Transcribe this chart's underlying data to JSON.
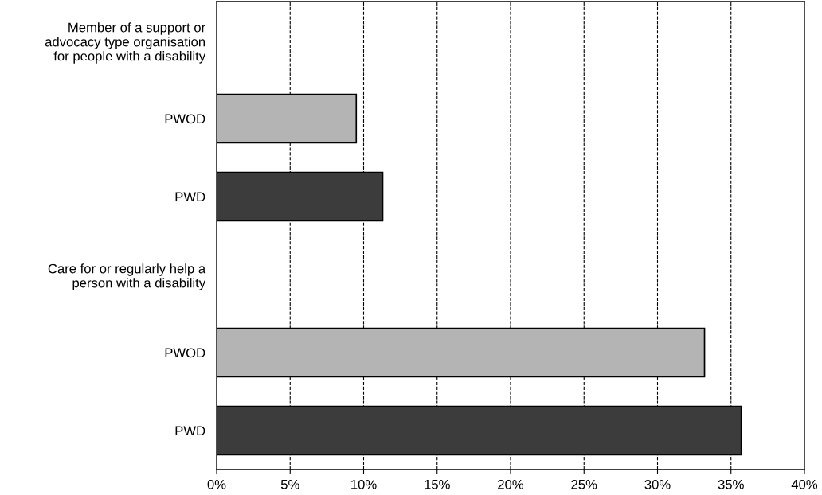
{
  "chart_data": {
    "type": "bar",
    "orientation": "horizontal",
    "categories": [
      "Member of a support or\nadvocacy type organisation\nfor people with a disability",
      "PWOD",
      "PWD",
      "Care for or regularly help a\nperson with a disability",
      "PWOD",
      "PWD"
    ],
    "values": [
      null,
      9.5,
      11.3,
      null,
      33.2,
      35.7
    ],
    "colors": [
      "#ffffff",
      "#b4b4b4",
      "#3c3c3c",
      "#ffffff",
      "#b4b4b4",
      "#3c3c3c"
    ],
    "xlim": [
      0,
      40
    ],
    "xticks": [
      {
        "value": 0,
        "label": "0%"
      },
      {
        "value": 5,
        "label": "5%"
      },
      {
        "value": 10,
        "label": "10%"
      },
      {
        "value": 15,
        "label": "15%"
      },
      {
        "value": 20,
        "label": "20%"
      },
      {
        "value": 25,
        "label": "25%"
      },
      {
        "value": 30,
        "label": "30%"
      },
      {
        "value": 35,
        "label": "35%"
      },
      {
        "value": 40,
        "label": "40%"
      }
    ],
    "grid": "x",
    "line_style": "dashed"
  }
}
